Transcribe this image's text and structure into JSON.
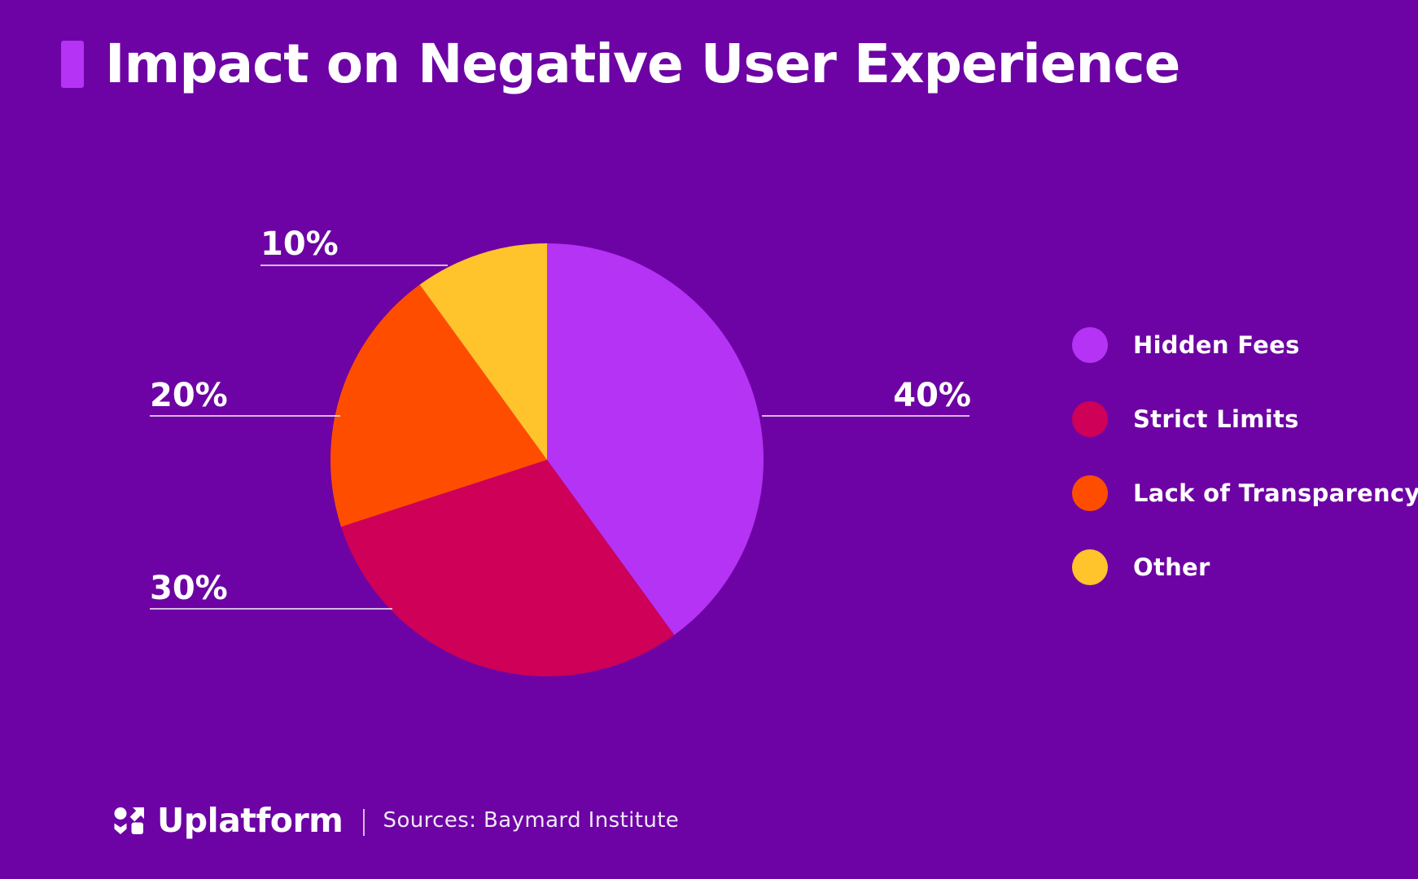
{
  "title": "Impact on Negative User Experience",
  "colors": {
    "background": "#6D03A4",
    "accent": "#B433F4",
    "hidden_fees": "#B433F4",
    "strict_limits": "#CE0058",
    "lack_of_transparency": "#FF4D00",
    "other": "#FFC32B",
    "leader_line": "rgba(255,255,255,0.72)",
    "text": "#FFFFFF"
  },
  "chart_data": {
    "type": "pie",
    "title": "Impact on Negative User Experience",
    "direction": "clockwise",
    "start_angle_deg": 0,
    "categories": [
      "Hidden Fees",
      "Strict Limits",
      "Lack of Transparency",
      "Other"
    ],
    "values": [
      40,
      30,
      20,
      10
    ],
    "labels": [
      "40%",
      "30%",
      "20%",
      "10%"
    ],
    "colors": [
      "#B433F4",
      "#CE0058",
      "#FF4D00",
      "#FFC32B"
    ],
    "legend_position": "right"
  },
  "legend": {
    "items": [
      {
        "label": "Hidden Fees",
        "color": "#B433F4"
      },
      {
        "label": "Strict Limits",
        "color": "#CE0058"
      },
      {
        "label": "Lack of Transparency",
        "color": "#FF4D00"
      },
      {
        "label": "Other",
        "color": "#FFC32B"
      }
    ]
  },
  "footer": {
    "brand": "Uplatform",
    "separator": "|",
    "source": "Sources: Baymard Institute"
  }
}
